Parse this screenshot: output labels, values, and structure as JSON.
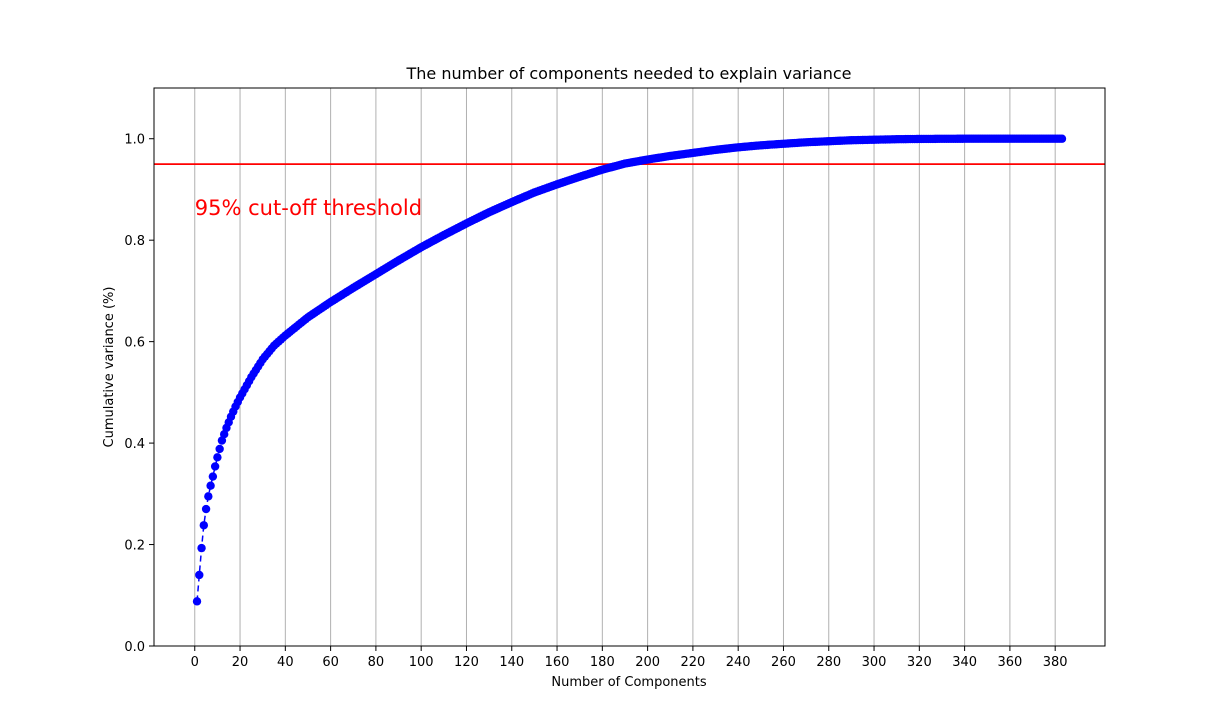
{
  "chart_data": {
    "type": "line",
    "title": "The number of components needed to explain variance",
    "xlabel": "Number of Components",
    "ylabel": "Cumulative variance (%)",
    "xlim": [
      -18,
      402
    ],
    "ylim": [
      0.0,
      1.1
    ],
    "xticks": [
      0,
      20,
      40,
      60,
      80,
      100,
      120,
      140,
      160,
      180,
      200,
      220,
      240,
      260,
      280,
      300,
      320,
      340,
      360,
      380
    ],
    "yticks": [
      0.0,
      0.2,
      0.4,
      0.6,
      0.8,
      1.0
    ],
    "grid": "vertical",
    "series": [
      {
        "color": "#0000ff",
        "line_style": "dashed",
        "marker": "circle",
        "x_start": 1,
        "x_end": 383,
        "x": [
          1,
          2,
          3,
          4,
          5,
          6,
          7,
          8,
          9,
          10,
          12,
          14,
          16,
          18,
          20,
          25,
          30,
          35,
          40,
          50,
          60,
          70,
          80,
          90,
          100,
          110,
          120,
          130,
          140,
          150,
          160,
          170,
          180,
          190,
          200,
          210,
          220,
          230,
          240,
          250,
          260,
          270,
          280,
          290,
          300,
          310,
          320,
          330,
          340,
          350,
          360,
          370,
          383
        ],
        "y": [
          0.088,
          0.14,
          0.193,
          0.238,
          0.27,
          0.295,
          0.316,
          0.334,
          0.354,
          0.372,
          0.405,
          0.43,
          0.452,
          0.472,
          0.49,
          0.53,
          0.565,
          0.592,
          0.612,
          0.648,
          0.678,
          0.706,
          0.733,
          0.76,
          0.786,
          0.81,
          0.833,
          0.855,
          0.875,
          0.894,
          0.91,
          0.925,
          0.939,
          0.951,
          0.959,
          0.966,
          0.972,
          0.978,
          0.983,
          0.987,
          0.99,
          0.993,
          0.995,
          0.997,
          0.998,
          0.999,
          0.9995,
          0.9998,
          1.0,
          1.0,
          1.0,
          1.0,
          1.0
        ]
      }
    ],
    "threshold": {
      "y": 0.95,
      "color": "#ff0000"
    },
    "annotation": {
      "text": "95% cut-off threshold",
      "x": 0,
      "y": 0.85,
      "color": "#ff0000"
    }
  }
}
